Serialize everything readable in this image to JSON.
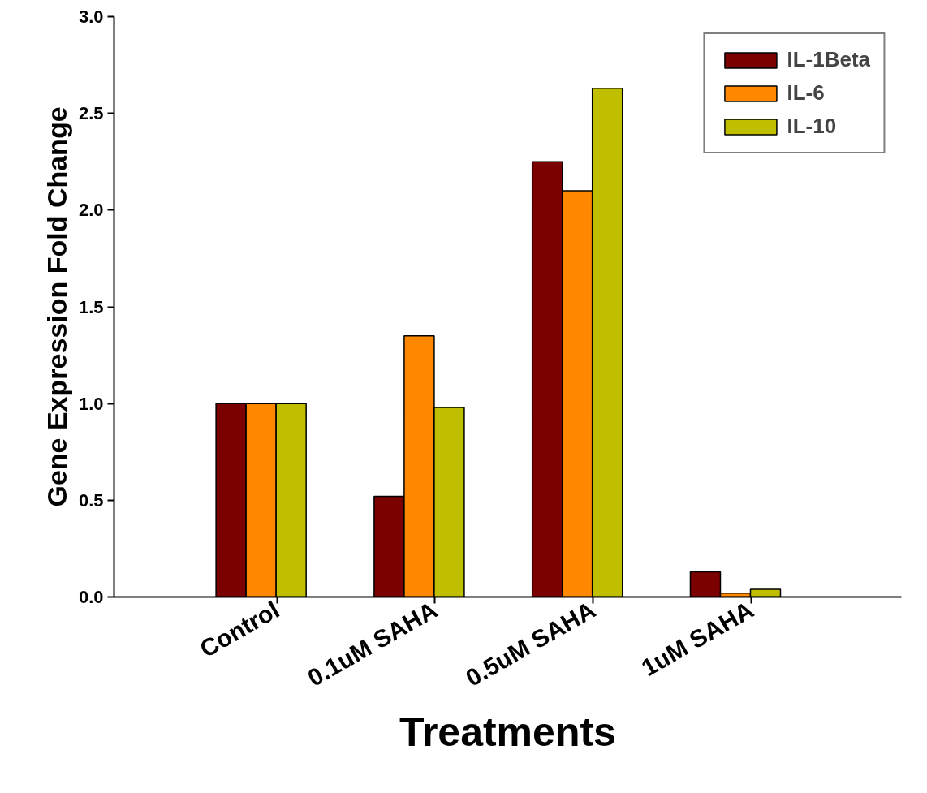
{
  "chart_data": {
    "type": "bar",
    "xlabel": "Treatments",
    "ylabel": "Gene Expression Fold Change",
    "categories": [
      "Control",
      "0.1uM SAHA",
      "0.5uM SAHA",
      "1uM SAHA"
    ],
    "series": [
      {
        "name": "IL-1Beta",
        "color": "#7b0000",
        "values": [
          1.0,
          0.52,
          2.25,
          0.13
        ]
      },
      {
        "name": "IL-6",
        "color": "#ff8800",
        "values": [
          1.0,
          1.35,
          2.1,
          0.02
        ]
      },
      {
        "name": "IL-10",
        "color": "#bfbf00",
        "values": [
          1.0,
          0.98,
          2.63,
          0.04
        ]
      }
    ],
    "ylim": [
      0,
      3.0
    ],
    "yticks": [
      {
        "value": 0,
        "label": "0.0"
      },
      {
        "value": 0.5,
        "label": "0.5"
      },
      {
        "value": 1,
        "label": "1.0"
      },
      {
        "value": 1.5,
        "label": "1.5"
      },
      {
        "value": 2,
        "label": "2.0"
      },
      {
        "value": 2.5,
        "label": "2.5"
      },
      {
        "value": 3,
        "label": "3.0"
      }
    ],
    "grid": false,
    "legend": "top right"
  }
}
